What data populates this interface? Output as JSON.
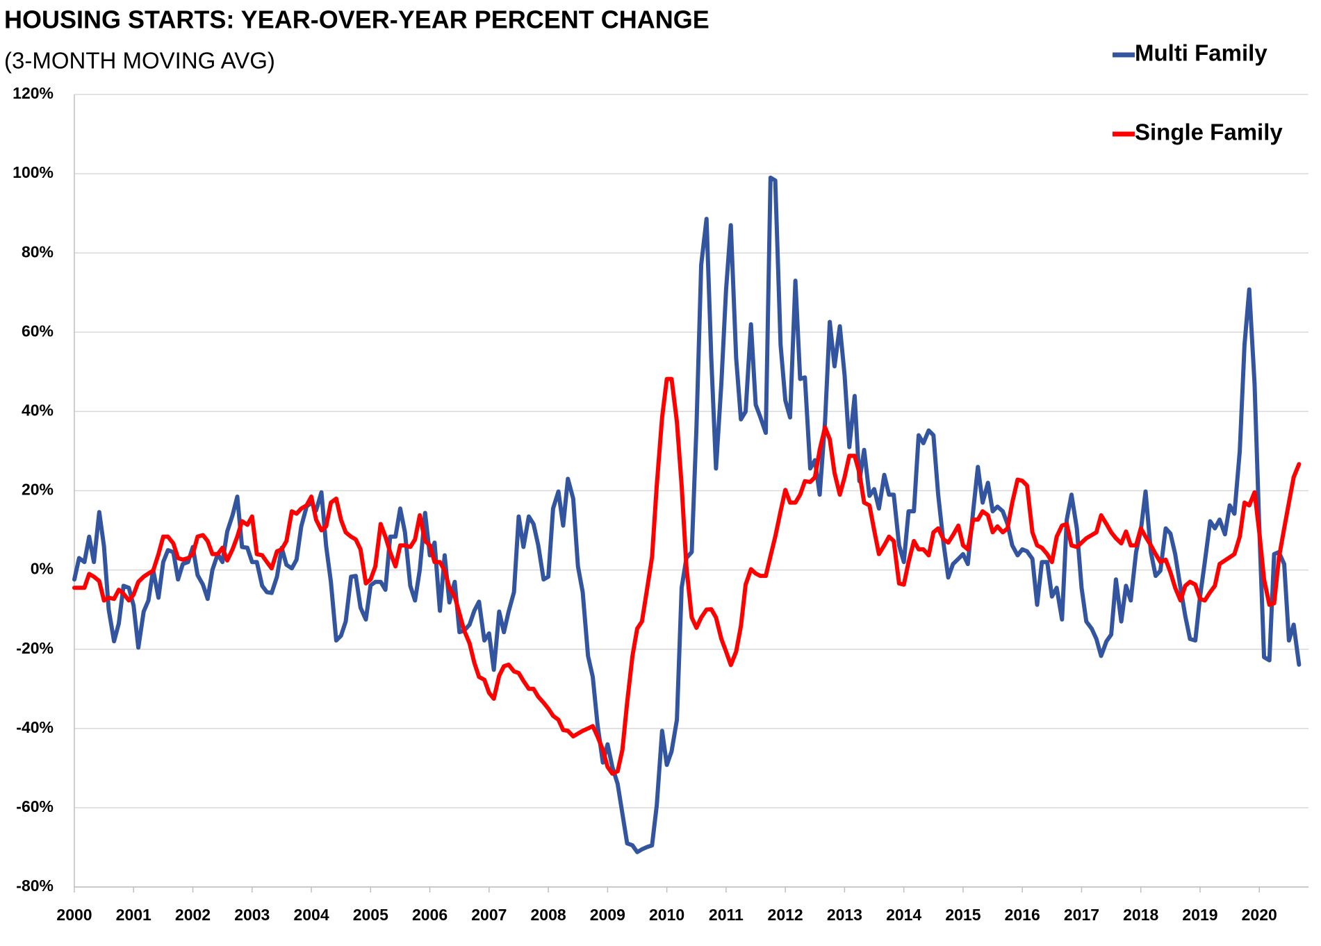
{
  "chart_data": {
    "type": "line",
    "title": "HOUSING STARTS: YEAR-OVER-YEAR PERCENT CHANGE",
    "subtitle": "(3-MONTH MOVING AVG)",
    "x": [
      2000,
      2000.08,
      2000.17,
      2000.25,
      2000.33,
      2000.42,
      2000.5,
      2000.58,
      2000.67,
      2000.75,
      2000.83,
      2000.92,
      2001,
      2001.08,
      2001.17,
      2001.25,
      2001.33,
      2001.42,
      2001.5,
      2001.58,
      2001.67,
      2001.75,
      2001.83,
      2001.92,
      2002,
      2002.08,
      2002.17,
      2002.25,
      2002.33,
      2002.42,
      2002.5,
      2002.58,
      2002.67,
      2002.75,
      2002.83,
      2002.92,
      2003,
      2003.08,
      2003.17,
      2003.25,
      2003.33,
      2003.42,
      2003.5,
      2003.58,
      2003.67,
      2003.75,
      2003.83,
      2003.92,
      2004,
      2004.08,
      2004.17,
      2004.25,
      2004.33,
      2004.42,
      2004.5,
      2004.58,
      2004.67,
      2004.75,
      2004.83,
      2004.92,
      2005,
      2005.08,
      2005.17,
      2005.25,
      2005.33,
      2005.42,
      2005.5,
      2005.58,
      2005.67,
      2005.75,
      2005.83,
      2005.92,
      2006,
      2006.08,
      2006.17,
      2006.25,
      2006.33,
      2006.42,
      2006.5,
      2006.58,
      2006.67,
      2006.75,
      2006.83,
      2006.92,
      2007,
      2007.08,
      2007.17,
      2007.25,
      2007.33,
      2007.42,
      2007.5,
      2007.58,
      2007.67,
      2007.75,
      2007.83,
      2007.92,
      2008,
      2008.08,
      2008.17,
      2008.25,
      2008.33,
      2008.42,
      2008.5,
      2008.58,
      2008.67,
      2008.75,
      2008.83,
      2008.92,
      2009,
      2009.08,
      2009.17,
      2009.25,
      2009.33,
      2009.42,
      2009.5,
      2009.58,
      2009.67,
      2009.75,
      2009.83,
      2009.92,
      2010,
      2010.08,
      2010.17,
      2010.25,
      2010.33,
      2010.42,
      2010.5,
      2010.58,
      2010.67,
      2010.75,
      2010.83,
      2010.92,
      2011,
      2011.08,
      2011.17,
      2011.25,
      2011.33,
      2011.42,
      2011.5,
      2011.58,
      2011.67,
      2011.75,
      2011.83,
      2011.92,
      2012,
      2012.08,
      2012.17,
      2012.25,
      2012.33,
      2012.42,
      2012.5,
      2012.58,
      2012.67,
      2012.75,
      2012.83,
      2012.92,
      2013,
      2013.08,
      2013.17,
      2013.25,
      2013.33,
      2013.42,
      2013.5,
      2013.58,
      2013.67,
      2013.75,
      2013.83,
      2013.92,
      2014,
      2014.08,
      2014.17,
      2014.25,
      2014.33,
      2014.42,
      2014.5,
      2014.58,
      2014.67,
      2014.75,
      2014.83,
      2014.92,
      2015,
      2015.08,
      2015.17,
      2015.25,
      2015.33,
      2015.42,
      2015.5,
      2015.58,
      2015.67,
      2015.75,
      2015.83,
      2015.92,
      2016,
      2016.08,
      2016.17,
      2016.25,
      2016.33,
      2016.42,
      2016.5,
      2016.58,
      2016.67,
      2016.75,
      2016.83,
      2016.92,
      2017,
      2017.08,
      2017.17,
      2017.25,
      2017.33,
      2017.42,
      2017.5,
      2017.58,
      2017.67,
      2017.75,
      2017.83,
      2017.92,
      2018,
      2018.08,
      2018.17,
      2018.25,
      2018.33,
      2018.42,
      2018.5,
      2018.58,
      2018.67,
      2018.75,
      2018.83,
      2018.92,
      2019,
      2019.08,
      2019.17,
      2019.25,
      2019.33,
      2019.42,
      2019.5,
      2019.58,
      2019.67,
      2019.75,
      2019.83,
      2019.92,
      2020,
      2020.08,
      2020.17,
      2020.25,
      2020.33,
      2020.42,
      2020.5,
      2020.58,
      2020.67
    ],
    "series": [
      {
        "name": "Multi Family",
        "color": "#3355a0",
        "values": [
          -2.4,
          3,
          2,
          8.4,
          2,
          14.6,
          6,
          -10,
          -18,
          -13.5,
          -4,
          -4.5,
          -9,
          -19.6,
          -10.5,
          -7.7,
          0,
          -7,
          2,
          5,
          4.5,
          -2.4,
          1.5,
          2,
          5.8,
          -1.3,
          -3.7,
          -7.3,
          0,
          4,
          2,
          9.7,
          13.8,
          18.5,
          5.8,
          5.6,
          2,
          2,
          -4,
          -5.6,
          -5.8,
          -1.7,
          5.6,
          1.3,
          0.4,
          2.6,
          11,
          16,
          17,
          15,
          19.6,
          6,
          -3,
          -17.8,
          -16.6,
          -13,
          -1.7,
          -1.5,
          -9.5,
          -12.5,
          -3.9,
          -3,
          -3,
          -5,
          8.4,
          8.4,
          15.5,
          9.5,
          -4,
          -7.7,
          0,
          14.4,
          3.7,
          6.9,
          -10.3,
          3.7,
          -8.2,
          -3,
          -15.7,
          -15.3,
          -13.8,
          -10.3,
          -8,
          -17.8,
          -16,
          -25.2,
          -10.5,
          -15.7,
          -10.5,
          -5.6,
          13.5,
          5.8,
          13.5,
          11.6,
          6.2,
          -2.4,
          -1.7,
          15.5,
          19.8,
          11.2,
          23,
          18,
          0.9,
          -5.6,
          -21.7,
          -27,
          -39,
          -48.6,
          -44,
          -49.7,
          -54,
          -61.5,
          -69,
          -69.5,
          -71.2,
          -70.5,
          -69.9,
          -69.5,
          -59.4,
          -40.6,
          -49.2,
          -45.8,
          -37.8,
          -4.5,
          3,
          4.5,
          36,
          77,
          88.6,
          53.5,
          25.6,
          47,
          70.8,
          87,
          53.5,
          38,
          40,
          62,
          41.7,
          38.5,
          34.6,
          99,
          98.3,
          56.8,
          42.8,
          38.5,
          73,
          48.2,
          48.6,
          25.6,
          27.7,
          19,
          37.4,
          62.6,
          51.4,
          61.5,
          49.2,
          31,
          43.9,
          22.4,
          30.3,
          18.7,
          20.4,
          15.5,
          24,
          19,
          19,
          6.2,
          2,
          14.8,
          14.8,
          34,
          32,
          35.2,
          34,
          19,
          6.7,
          -1.9,
          1.5,
          2.8,
          4,
          1.5,
          14.8,
          26,
          17,
          22,
          14.8,
          16,
          14.8,
          11.6,
          6.2,
          3.7,
          5.2,
          4.7,
          2.8,
          -8.8,
          2,
          2,
          -6.7,
          -4.5,
          -12.5,
          12.7,
          19,
          10.5,
          -4.5,
          -13,
          -14.8,
          -17.4,
          -21.7,
          -18,
          -16.3,
          -2.4,
          -13,
          -4,
          -7.7,
          4.5,
          10,
          19.8,
          4.5,
          -1.5,
          -0.2,
          10.5,
          9.2,
          4,
          -4.5,
          -11.6,
          -17.4,
          -17.8,
          -6.7,
          2,
          12.3,
          10.5,
          12.7,
          9,
          16.3,
          14.2,
          30,
          56.8,
          70.8,
          47,
          10.5,
          -22,
          -22.8,
          4,
          4.5,
          1.5,
          -17.8,
          -13.8,
          -23.9
        ]
      },
      {
        "name": "Single Family",
        "color": "#ff0000",
        "values": [
          -4.5,
          -4.5,
          -4.5,
          -1,
          -1.7,
          -2.8,
          -7.7,
          -7,
          -7.3,
          -5,
          -6,
          -7.7,
          -6.2,
          -3,
          -1.7,
          -0.9,
          -0.2,
          4,
          8.4,
          8.4,
          6.7,
          3,
          2.6,
          3,
          4,
          8.4,
          8.8,
          7.3,
          4,
          4,
          5.6,
          2.4,
          5.2,
          8.4,
          12.3,
          11.4,
          13.5,
          4,
          3.7,
          2,
          0.4,
          4.7,
          5.2,
          7.3,
          14.8,
          14.2,
          15.5,
          16.3,
          18.5,
          12.7,
          10,
          11,
          17,
          18,
          12.7,
          9.5,
          8.4,
          7.7,
          5.2,
          -3.4,
          -2.4,
          0.9,
          11.6,
          8.4,
          4.5,
          0.9,
          6.2,
          6.2,
          5.8,
          7.7,
          13.8,
          7.3,
          6.2,
          2,
          2,
          -0.2,
          -4.5,
          -6.7,
          -11,
          -15.3,
          -18.5,
          -23.4,
          -27,
          -27.7,
          -31,
          -32.5,
          -26.7,
          -24.3,
          -23.9,
          -25.6,
          -26,
          -28,
          -30,
          -30,
          -32,
          -33.5,
          -35,
          -36.8,
          -37.8,
          -40.4,
          -40.6,
          -42,
          -41.3,
          -40.6,
          -40,
          -39.4,
          -42,
          -45.4,
          -49.7,
          -51.4,
          -50.8,
          -45.4,
          -33.5,
          -21.7,
          -14.8,
          -13,
          -4.5,
          3.2,
          21.3,
          38.5,
          48.2,
          48.2,
          37.4,
          21.3,
          0.9,
          -12,
          -14.6,
          -12,
          -10,
          -9.9,
          -12,
          -17.4,
          -20.6,
          -24,
          -20.6,
          -14.2,
          -3.7,
          0.2,
          -0.9,
          -1.5,
          -1.5,
          3.5,
          8.4,
          14.8,
          20.2,
          17,
          17,
          19,
          22.4,
          22.2,
          23.4,
          30.3,
          36,
          33,
          24.5,
          19,
          23.4,
          28.8,
          28.8,
          24.5,
          17,
          16.3,
          10,
          4,
          6.2,
          8.4,
          7.3,
          -3.4,
          -3.7,
          2,
          7.3,
          5.2,
          5.2,
          3.7,
          9.5,
          10.5,
          7.7,
          6.9,
          8.8,
          11.2,
          6.2,
          5.2,
          12.7,
          12.7,
          14.8,
          13.8,
          9.5,
          11,
          9.5,
          10.5,
          17,
          22.8,
          22.5,
          21.3,
          9.5,
          6.2,
          5.6,
          4,
          2,
          8.4,
          11.2,
          11.6,
          6.2,
          5.8,
          6.9,
          8,
          8.8,
          9.5,
          13.8,
          11.6,
          9.5,
          8,
          6.7,
          9.7,
          6.2,
          6.2,
          10.5,
          8.4,
          6.2,
          4,
          2,
          2.6,
          -0.6,
          -4.5,
          -7.7,
          -4,
          -3,
          -3.7,
          -7.3,
          -7.7,
          -5.6,
          -4,
          1.5,
          2.4,
          3.2,
          4,
          8.4,
          17,
          16.3,
          19.6,
          9.5,
          -2.4,
          -8.8,
          -8.4,
          3,
          10.5,
          17,
          23.4,
          26.7
        ]
      }
    ],
    "xlim": [
      2000,
      2020.83
    ],
    "xticks": [
      2000,
      2001,
      2002,
      2003,
      2004,
      2005,
      2006,
      2007,
      2008,
      2009,
      2010,
      2011,
      2012,
      2013,
      2014,
      2015,
      2016,
      2017,
      2018,
      2019,
      2020
    ],
    "ylim": [
      -80,
      120
    ],
    "yticks": [
      {
        "value": -80,
        "label": "-80%"
      },
      {
        "value": -60,
        "label": "-60%"
      },
      {
        "value": -40,
        "label": "-40%"
      },
      {
        "value": -20,
        "label": "-20%"
      },
      {
        "value": 0,
        "label": "0%"
      },
      {
        "value": 20,
        "label": "20%"
      },
      {
        "value": 40,
        "label": "40%"
      },
      {
        "value": 60,
        "label": "60%"
      },
      {
        "value": 80,
        "label": "80%"
      },
      {
        "value": 100,
        "label": "100%"
      },
      {
        "value": 120,
        "label": "120%"
      }
    ],
    "grid": true,
    "legend": "upper right"
  }
}
